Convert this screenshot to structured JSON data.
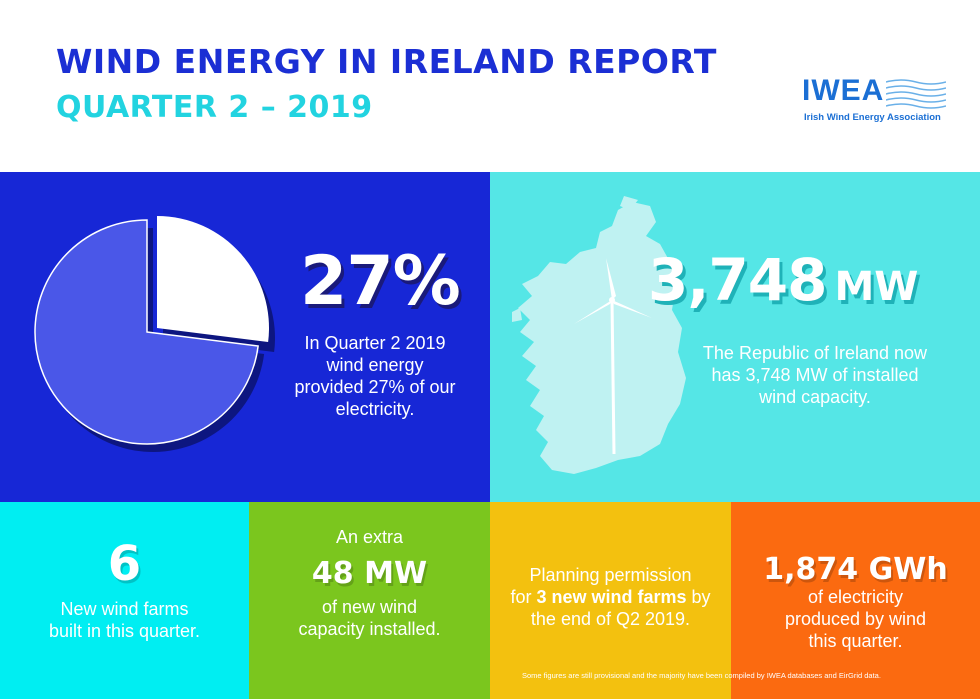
{
  "header": {
    "title": "WIND ENERGY IN IRELAND REPORT",
    "subtitle": "QUARTER 2 – 2019"
  },
  "logo": {
    "name": "IWEA",
    "tagline": "Irish Wind Energy Association"
  },
  "share_panel": {
    "value": "27%",
    "description": "In Quarter 2 2019 wind energy provided 27% of our electricity.",
    "wind_share_fraction": 0.27,
    "icon": "pie-chart-icon"
  },
  "capacity_panel": {
    "value": "3,748",
    "unit": "MW",
    "description": "The Republic of Ireland now has 3,748 MW of installed wind capacity.",
    "icon": "ireland-map-icon"
  },
  "tiles": {
    "farms": {
      "value": "6",
      "line1": "New wind farms",
      "line2": "built in this quarter."
    },
    "capacity": {
      "prefix": "An extra",
      "value": "48 MW",
      "line1": "of new wind",
      "line2": "capacity installed."
    },
    "planning": {
      "line1": "Planning permission",
      "pre": "for ",
      "bold": "3 new wind farms",
      "post": " by",
      "line3": "the end of Q2 2019."
    },
    "generation": {
      "value": "1,874 GWh",
      "line1": "of electricity",
      "line2": "produced by wind",
      "line3": "this quarter."
    }
  },
  "footnote": "Some figures are still provisional and the majority have been compiled by IWEA databases and EirGrid data.",
  "colors": {
    "blue": "#1727d6",
    "cyan": "#55e6e6",
    "turquoise": "#00eef2",
    "green": "#7bc61e",
    "yellow": "#f3c10f",
    "orange": "#fb6a10",
    "title_blue": "#1b2fd4",
    "title_cyan": "#22d3e0"
  }
}
